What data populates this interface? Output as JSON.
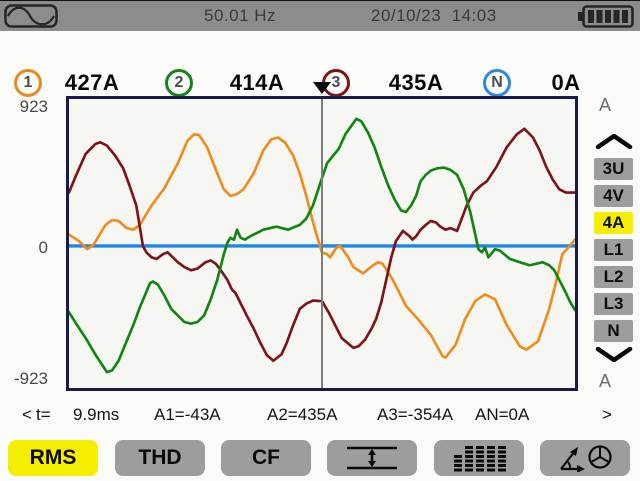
{
  "top_bar": {
    "frequency": "50.01 Hz",
    "datetime": "20/10/23  14:03",
    "waveform_icon": "sine-wave-icon",
    "battery_icon": "battery-full-icon"
  },
  "measurements": [
    {
      "id": "1",
      "value": "427A",
      "color": "#e8891d"
    },
    {
      "id": "2",
      "value": "414A",
      "color": "#15831c"
    },
    {
      "id": "3",
      "value": "435A",
      "color": "#7c1418"
    },
    {
      "id": "N",
      "value": "0A",
      "color": "#2e86e0"
    }
  ],
  "chart": {
    "y_max_label": "923",
    "y_zero_label": "0",
    "y_min_label": "-923",
    "unit_top": "A",
    "unit_bottom": "A"
  },
  "chart_data": {
    "type": "line",
    "title": "RMS current waveforms (4A view)",
    "x_axis": {
      "cursor_t": "9.9ms",
      "cursor_frac": 0.5
    },
    "y_axis": {
      "unit": "A",
      "max": 923,
      "min": -923
    },
    "legend_position": "none",
    "grid": false,
    "series": [
      {
        "name": "AN",
        "color": "#1d86e8",
        "width": 3.5,
        "points": [
          [
            0,
            0
          ],
          [
            1,
            0
          ]
        ]
      },
      {
        "name": "A1",
        "color": "#ee8c1c",
        "width": 2.7,
        "points": [
          [
            0,
            73
          ],
          [
            0.02,
            31
          ],
          [
            0.036,
            -21
          ],
          [
            0.049,
            10
          ],
          [
            0.072,
            135
          ],
          [
            0.085,
            166
          ],
          [
            0.098,
            160
          ],
          [
            0.114,
            114
          ],
          [
            0.127,
            104
          ],
          [
            0.14,
            135
          ],
          [
            0.163,
            259
          ],
          [
            0.189,
            373
          ],
          [
            0.215,
            529
          ],
          [
            0.234,
            674
          ],
          [
            0.247,
            715
          ],
          [
            0.257,
            711
          ],
          [
            0.273,
            632
          ],
          [
            0.293,
            466
          ],
          [
            0.306,
            363
          ],
          [
            0.319,
            321
          ],
          [
            0.332,
            332
          ],
          [
            0.345,
            363
          ],
          [
            0.365,
            466
          ],
          [
            0.384,
            612
          ],
          [
            0.4,
            684
          ],
          [
            0.413,
            695
          ],
          [
            0.427,
            663
          ],
          [
            0.443,
            580
          ],
          [
            0.456,
            466
          ],
          [
            0.469,
            321
          ],
          [
            0.482,
            155
          ],
          [
            0.491,
            52
          ],
          [
            0.5,
            -43
          ],
          [
            0.51,
            -52
          ],
          [
            0.516,
            -73
          ],
          [
            0.529,
            -10
          ],
          [
            0.536,
            0
          ],
          [
            0.552,
            -73
          ],
          [
            0.562,
            -135
          ],
          [
            0.581,
            -176
          ],
          [
            0.601,
            -124
          ],
          [
            0.611,
            -104
          ],
          [
            0.62,
            -114
          ],
          [
            0.64,
            -218
          ],
          [
            0.666,
            -384
          ],
          [
            0.689,
            -467
          ],
          [
            0.715,
            -570
          ],
          [
            0.738,
            -705
          ],
          [
            0.744,
            -715
          ],
          [
            0.764,
            -633
          ],
          [
            0.783,
            -467
          ],
          [
            0.803,
            -353
          ],
          [
            0.822,
            -311
          ],
          [
            0.842,
            -342
          ],
          [
            0.865,
            -508
          ],
          [
            0.891,
            -643
          ],
          [
            0.904,
            -664
          ],
          [
            0.927,
            -611
          ],
          [
            0.949,
            -404
          ],
          [
            0.962,
            -239
          ],
          [
            0.975,
            -52
          ],
          [
            0.988,
            -5
          ],
          [
            1,
            40
          ]
        ]
      },
      {
        "name": "A3",
        "color": "#7c1418",
        "width": 2.7,
        "points": [
          [
            0,
            342
          ],
          [
            0.013,
            446
          ],
          [
            0.033,
            591
          ],
          [
            0.052,
            653
          ],
          [
            0.062,
            664
          ],
          [
            0.075,
            643
          ],
          [
            0.091,
            580
          ],
          [
            0.107,
            498
          ],
          [
            0.12,
            384
          ],
          [
            0.133,
            259
          ],
          [
            0.146,
            0
          ],
          [
            0.153,
            -41
          ],
          [
            0.163,
            -73
          ],
          [
            0.173,
            -83
          ],
          [
            0.186,
            -52
          ],
          [
            0.195,
            -41
          ],
          [
            0.215,
            -104
          ],
          [
            0.228,
            -135
          ],
          [
            0.241,
            -156
          ],
          [
            0.254,
            -145
          ],
          [
            0.27,
            -104
          ],
          [
            0.28,
            -93
          ],
          [
            0.29,
            -114
          ],
          [
            0.3,
            -156
          ],
          [
            0.313,
            -218
          ],
          [
            0.322,
            -280
          ],
          [
            0.329,
            -301
          ],
          [
            0.352,
            -450
          ],
          [
            0.365,
            -530
          ],
          [
            0.378,
            -620
          ],
          [
            0.391,
            -700
          ],
          [
            0.404,
            -736
          ],
          [
            0.42,
            -695
          ],
          [
            0.43,
            -622
          ],
          [
            0.443,
            -508
          ],
          [
            0.456,
            -404
          ],
          [
            0.469,
            -370
          ],
          [
            0.482,
            -350
          ],
          [
            0.5,
            -354
          ],
          [
            0.513,
            -425
          ],
          [
            0.526,
            -508
          ],
          [
            0.539,
            -591
          ],
          [
            0.562,
            -653
          ],
          [
            0.572,
            -643
          ],
          [
            0.585,
            -601
          ],
          [
            0.598,
            -529
          ],
          [
            0.607,
            -467
          ],
          [
            0.617,
            -363
          ],
          [
            0.627,
            -218
          ],
          [
            0.637,
            -73
          ],
          [
            0.646,
            31
          ],
          [
            0.66,
            97
          ],
          [
            0.673,
            62
          ],
          [
            0.679,
            41
          ],
          [
            0.686,
            62
          ],
          [
            0.695,
            104
          ],
          [
            0.705,
            135
          ],
          [
            0.715,
            160
          ],
          [
            0.725,
            151
          ],
          [
            0.734,
            124
          ],
          [
            0.744,
            104
          ],
          [
            0.754,
            114
          ],
          [
            0.767,
            97
          ],
          [
            0.786,
            259
          ],
          [
            0.799,
            342
          ],
          [
            0.813,
            384
          ],
          [
            0.826,
            415
          ],
          [
            0.845,
            508
          ],
          [
            0.865,
            632
          ],
          [
            0.885,
            715
          ],
          [
            0.9,
            751
          ],
          [
            0.917,
            695
          ],
          [
            0.93,
            612
          ],
          [
            0.943,
            508
          ],
          [
            0.956,
            425
          ],
          [
            0.969,
            363
          ],
          [
            0.982,
            342
          ],
          [
            1,
            342
          ]
        ]
      },
      {
        "name": "A2",
        "color": "#108510",
        "width": 2.7,
        "points": [
          [
            0,
            -425
          ],
          [
            0.016,
            -508
          ],
          [
            0.033,
            -591
          ],
          [
            0.052,
            -695
          ],
          [
            0.075,
            -809
          ],
          [
            0.085,
            -798
          ],
          [
            0.098,
            -736
          ],
          [
            0.111,
            -633
          ],
          [
            0.127,
            -508
          ],
          [
            0.14,
            -394
          ],
          [
            0.16,
            -239
          ],
          [
            0.166,
            -228
          ],
          [
            0.176,
            -249
          ],
          [
            0.189,
            -321
          ],
          [
            0.202,
            -404
          ],
          [
            0.228,
            -487
          ],
          [
            0.241,
            -498
          ],
          [
            0.254,
            -487
          ],
          [
            0.267,
            -446
          ],
          [
            0.28,
            -342
          ],
          [
            0.293,
            -218
          ],
          [
            0.306,
            -52
          ],
          [
            0.313,
            21
          ],
          [
            0.319,
            52
          ],
          [
            0.326,
            40
          ],
          [
            0.332,
            104
          ],
          [
            0.339,
            52
          ],
          [
            0.348,
            41
          ],
          [
            0.358,
            62
          ],
          [
            0.371,
            83
          ],
          [
            0.384,
            104
          ],
          [
            0.41,
            124
          ],
          [
            0.433,
            104
          ],
          [
            0.456,
            135
          ],
          [
            0.469,
            176
          ],
          [
            0.482,
            259
          ],
          [
            0.5,
            435
          ],
          [
            0.51,
            529
          ],
          [
            0.52,
            570
          ],
          [
            0.533,
            622
          ],
          [
            0.546,
            715
          ],
          [
            0.568,
            815
          ],
          [
            0.578,
            798
          ],
          [
            0.591,
            726
          ],
          [
            0.604,
            632
          ],
          [
            0.617,
            508
          ],
          [
            0.63,
            394
          ],
          [
            0.643,
            301
          ],
          [
            0.656,
            228
          ],
          [
            0.666,
            218
          ],
          [
            0.676,
            259
          ],
          [
            0.686,
            321
          ],
          [
            0.695,
            415
          ],
          [
            0.705,
            456
          ],
          [
            0.715,
            483
          ],
          [
            0.728,
            498
          ],
          [
            0.741,
            502
          ],
          [
            0.754,
            487
          ],
          [
            0.767,
            456
          ],
          [
            0.78,
            363
          ],
          [
            0.793,
            218
          ],
          [
            0.803,
            73
          ],
          [
            0.809,
            -21
          ],
          [
            0.816,
            -41
          ],
          [
            0.822,
            -10
          ],
          [
            0.829,
            -73
          ],
          [
            0.842,
            -21
          ],
          [
            0.852,
            -31
          ],
          [
            0.871,
            -83
          ],
          [
            0.891,
            -104
          ],
          [
            0.91,
            -124
          ],
          [
            0.923,
            -114
          ],
          [
            0.936,
            -104
          ],
          [
            0.949,
            -124
          ],
          [
            0.959,
            -156
          ],
          [
            0.969,
            -218
          ],
          [
            0.982,
            -301
          ],
          [
            0.991,
            -363
          ],
          [
            1,
            -410
          ]
        ]
      }
    ]
  },
  "sidebar": {
    "up_icon": "chevron-up-icon",
    "down_icon": "chevron-down-icon",
    "items": [
      {
        "label": "3U",
        "active": false
      },
      {
        "label": "4V",
        "active": false
      },
      {
        "label": "4A",
        "active": true
      },
      {
        "label": "L1",
        "active": false
      },
      {
        "label": "L2",
        "active": false
      },
      {
        "label": "L3",
        "active": false
      },
      {
        "label": "N",
        "active": false
      }
    ]
  },
  "status_bar": {
    "prev_label": "<",
    "t_label": "t=",
    "t_value": "9.9ms",
    "readouts": [
      "A1=-43A",
      "A2=435A",
      "A3=-354A",
      "AN=0A"
    ],
    "next_label": ">"
  },
  "bottom_bar": {
    "buttons": [
      {
        "label": "RMS",
        "active": true
      },
      {
        "label": "THD",
        "active": false
      },
      {
        "label": "CF",
        "active": false
      }
    ],
    "icon_buttons": [
      "min-max-icon",
      "harmonics-icon",
      "phasor-icon"
    ],
    "active_color": "#f6ee00"
  }
}
